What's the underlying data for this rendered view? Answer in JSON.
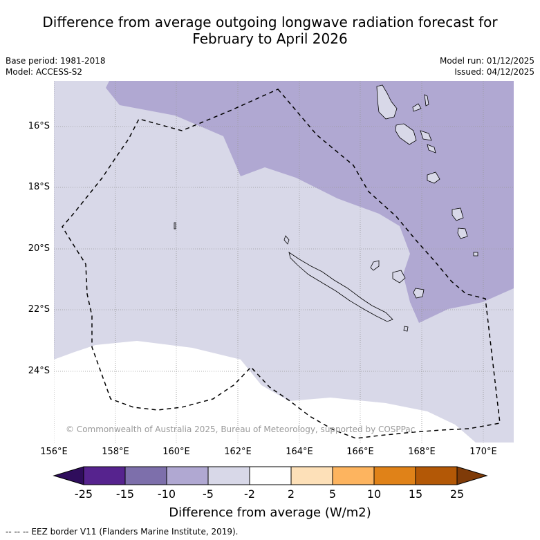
{
  "title_line1": "Difference from average outgoing longwave radiation forecast for",
  "title_line2": "February to April 2026",
  "base_period": "Base period: 1981-2018",
  "model": "Model: ACCESS-S2",
  "model_run": "Model run: 01/12/2025",
  "issued": "Issued: 04/12/2025",
  "copyright": "© Commonwealth of Australia 2025, Bureau of Meteorology, supported by COSPPac",
  "lat_labels": [
    "16°S",
    "18°S",
    "20°S",
    "22°S",
    "24°S"
  ],
  "lon_labels": [
    "156°E",
    "158°E",
    "160°E",
    "162°E",
    "164°E",
    "166°E",
    "168°E",
    "170°E"
  ],
  "colorbar": {
    "ticks": [
      "-25",
      "-15",
      "-10",
      "-5",
      "-2",
      "2",
      "5",
      "10",
      "15",
      "25"
    ],
    "colors": [
      "#2f0d5c",
      "#56238e",
      "#7d6fab",
      "#b0a8d2",
      "#d8d8e8",
      "#ffffff",
      "#fde0b8",
      "#fdb45f",
      "#e08218",
      "#b35806",
      "#7f3b08"
    ],
    "label": "Difference from average (W/m2)"
  },
  "legend_note": "--  --  -- EEZ border V11 (Flanders Marine Institute, 2019)."
}
